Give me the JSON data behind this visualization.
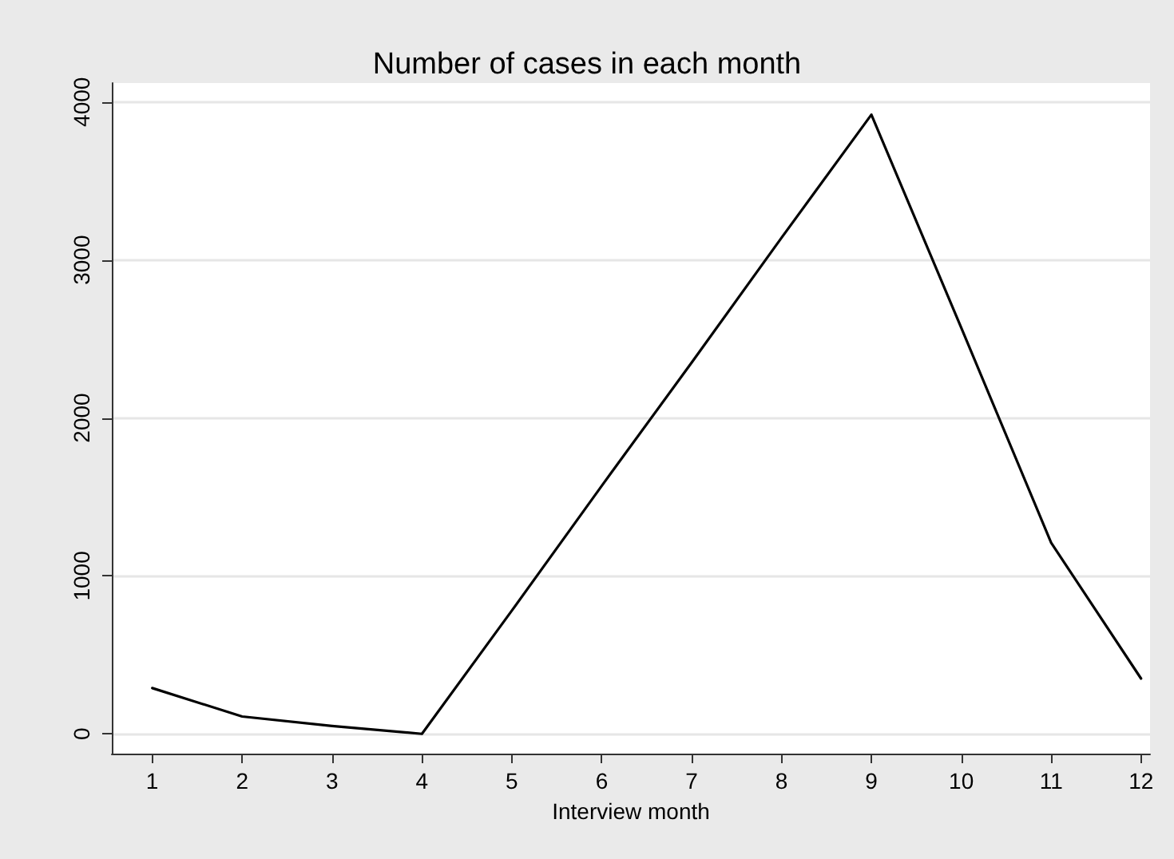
{
  "chart_data": {
    "type": "line",
    "title": "Number of cases in each month",
    "xlabel": "Interview month",
    "x": [
      1,
      2,
      3,
      4,
      5,
      6,
      7,
      8,
      9,
      10,
      11,
      12
    ],
    "series": [
      {
        "color": "#000000",
        "values": [
          290,
          110,
          50,
          0,
          780,
          1570,
          2350,
          3140,
          3920,
          2570,
          1210,
          350
        ]
      }
    ],
    "xlim": [
      0.55,
      12.1
    ],
    "xticks": [
      1,
      2,
      3,
      4,
      5,
      6,
      7,
      8,
      9,
      10,
      11,
      12
    ],
    "ylim": [
      -125,
      4120
    ],
    "yticks": [
      0,
      1000,
      2000,
      3000,
      4000
    ],
    "grid": "y",
    "marker": "none",
    "line_style": "solid"
  }
}
